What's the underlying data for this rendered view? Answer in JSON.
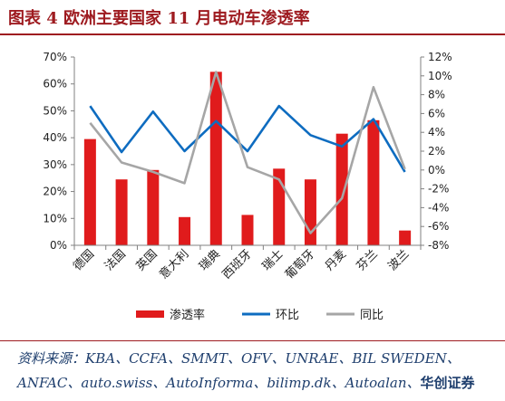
{
  "figure": {
    "title": "图表 4   欧洲主要国家 11 月电动车渗透率",
    "source_prefix": "资料来源：",
    "source_list": "KBA、CCFA、SMMT、OFV、UNRAE、BIL SWEDEN、ANFAC、auto.swiss、AutoInforma、bilimp.dk、Autoalan、",
    "source_brand": "华创证券"
  },
  "colors": {
    "bar": "#e01b1c",
    "mom_line": "#0e6cc0",
    "yoy_line": "#a6a6a6",
    "title": "#9e1b20",
    "source": "#1f3f6e"
  },
  "chart_data": {
    "type": "bar",
    "categories": [
      "德国",
      "法国",
      "英国",
      "意大利",
      "瑞典",
      "西班牙",
      "瑞士",
      "葡萄牙",
      "丹麦",
      "芬兰",
      "波兰"
    ],
    "series": [
      {
        "name": "渗透率",
        "type": "bar",
        "axis": "left",
        "values": [
          39.5,
          24.5,
          28,
          10.5,
          64.5,
          11.3,
          28.5,
          24.5,
          41.5,
          46.5,
          5.5
        ]
      },
      {
        "name": "环比",
        "type": "line",
        "axis": "right",
        "values": [
          6.8,
          1.9,
          6.2,
          2.0,
          5.2,
          2.0,
          6.8,
          3.7,
          2.5,
          5.4,
          -0.2
        ]
      },
      {
        "name": "同比",
        "type": "line",
        "axis": "right",
        "values": [
          5.0,
          0.8,
          -0.2,
          -1.4,
          10.4,
          0.3,
          -1.0,
          -6.7,
          -3.0,
          8.8,
          0.1
        ]
      }
    ],
    "ylim_left": [
      0,
      70
    ],
    "yticks_left": [
      "0%",
      "10%",
      "20%",
      "30%",
      "40%",
      "50%",
      "60%",
      "70%"
    ],
    "ylim_right": [
      -8,
      12
    ],
    "yticks_right": [
      "-8%",
      "-6%",
      "-4%",
      "-2%",
      "0%",
      "2%",
      "4%",
      "6%",
      "8%",
      "10%",
      "12%"
    ],
    "legend_position": "bottom",
    "grid": false
  }
}
